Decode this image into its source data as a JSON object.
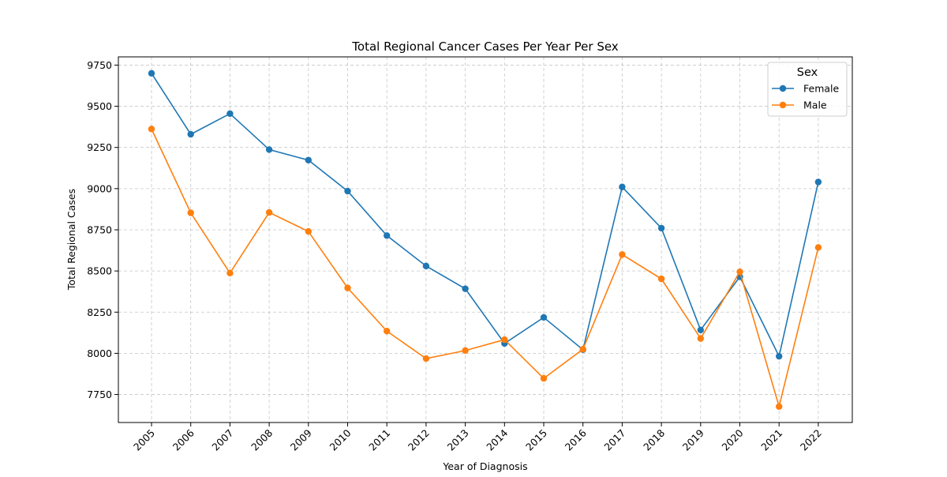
{
  "chart_data": {
    "type": "line",
    "title": "Total Regional Cancer Cases Per Year Per Sex",
    "xlabel": "Year of Diagnosis",
    "ylabel": "Total Regional Cases",
    "x": [
      "2005",
      "2006",
      "2007",
      "2008",
      "2009",
      "2010",
      "2011",
      "2012",
      "2013",
      "2014",
      "2015",
      "2016",
      "2017",
      "2018",
      "2019",
      "2020",
      "2021",
      "2022"
    ],
    "ylim": [
      7580,
      9800
    ],
    "yticks": [
      7750,
      8000,
      8250,
      8500,
      8750,
      9000,
      9250,
      9500,
      9750
    ],
    "grid": true,
    "legend": {
      "title": "Sex",
      "placement": "top-right"
    },
    "series": [
      {
        "name": "Female",
        "color": "#1f77b4",
        "values": [
          9700,
          9330,
          9455,
          9237,
          9173,
          8985,
          8715,
          8530,
          8392,
          8060,
          8218,
          8022,
          9010,
          8760,
          8142,
          8465,
          7982,
          9040
        ]
      },
      {
        "name": "Male",
        "color": "#ff7f0e",
        "values": [
          9362,
          8853,
          8487,
          8855,
          8740,
          8397,
          8135,
          7968,
          8017,
          8083,
          7848,
          8025,
          8600,
          8452,
          8090,
          8495,
          7677,
          8643
        ]
      }
    ]
  }
}
